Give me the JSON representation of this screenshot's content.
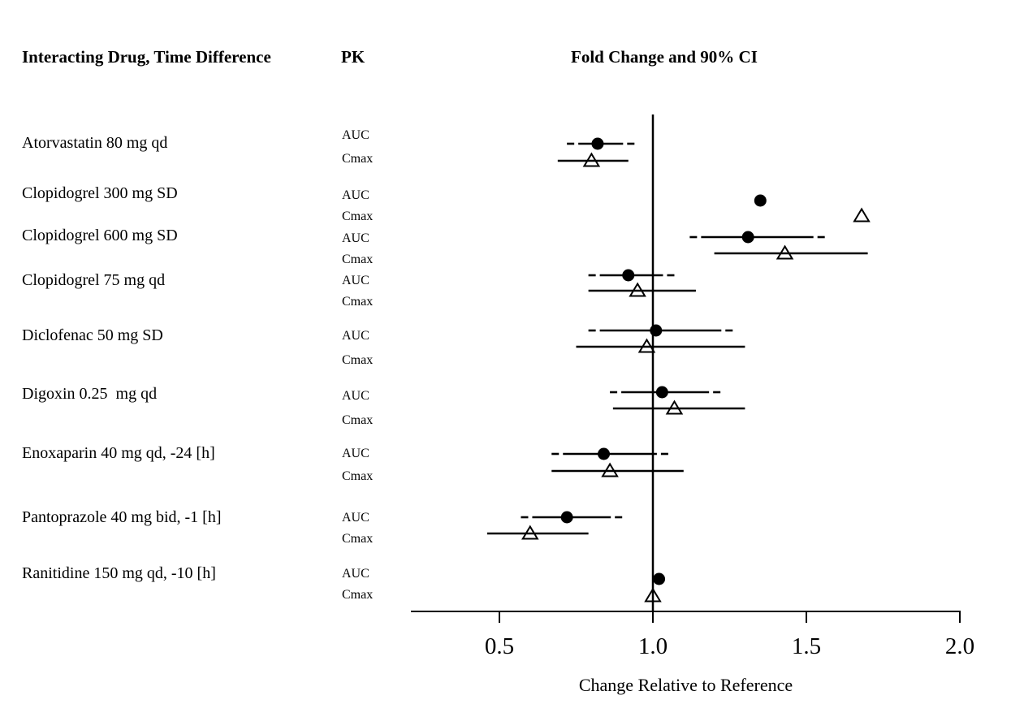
{
  "page": {
    "background": "#ffffff",
    "ink_color": "#000000"
  },
  "headers": {
    "drug_col": "Interacting Drug, Time Difference",
    "pk_col": "PK",
    "plot_col": "Fold Change and 90% CI"
  },
  "chart_data": {
    "type": "forest",
    "title": "Fold Change and 90% CI",
    "xlabel": "Change Relative to Reference",
    "x_tick_values": [
      0.5,
      1.0,
      1.5,
      2.0
    ],
    "x_tick_labels": [
      "0.5",
      "1.0",
      "1.5",
      "2.0"
    ],
    "xlim": [
      0.21,
      2.0
    ],
    "reference_line": 1.0,
    "grid": false,
    "pk_row_labels": [
      "AUC",
      "Cmax"
    ],
    "marker_legend": {
      "auc": "filled black circle with dashed-end 90% CI line",
      "cmax": "open triangle with solid 90% CI line"
    },
    "rows": [
      {
        "drug": "Atorvastatin 80 mg qd",
        "auc": {
          "est": 0.82,
          "lo": 0.72,
          "hi": 0.94
        },
        "cmax": {
          "est": 0.8,
          "lo": 0.69,
          "hi": 0.92
        }
      },
      {
        "drug": "Clopidogrel 300 mg SD",
        "auc": {
          "est": 1.35
        },
        "cmax": {
          "est": 1.68
        }
      },
      {
        "drug": "Clopidogrel 600 mg SD",
        "auc": {
          "est": 1.31,
          "lo": 1.12,
          "hi": 1.56
        },
        "cmax": {
          "est": 1.43,
          "lo": 1.2,
          "hi": 1.7
        }
      },
      {
        "drug": "Clopidogrel 75 mg qd",
        "auc": {
          "est": 0.92,
          "lo": 0.79,
          "hi": 1.07
        },
        "cmax": {
          "est": 0.95,
          "lo": 0.79,
          "hi": 1.14
        }
      },
      {
        "drug": "Diclofenac 50 mg SD",
        "auc": {
          "est": 1.01,
          "lo": 0.79,
          "hi": 1.26
        },
        "cmax": {
          "est": 0.98,
          "lo": 0.75,
          "hi": 1.3
        }
      },
      {
        "drug": "Digoxin 0.25  mg qd",
        "auc": {
          "est": 1.03,
          "lo": 0.86,
          "hi": 1.22
        },
        "cmax": {
          "est": 1.07,
          "lo": 0.87,
          "hi": 1.3
        }
      },
      {
        "drug": "Enoxaparin 40 mg qd, -24 [h]",
        "auc": {
          "est": 0.84,
          "lo": 0.67,
          "hi": 1.05
        },
        "cmax": {
          "est": 0.86,
          "lo": 0.67,
          "hi": 1.1
        }
      },
      {
        "drug": "Pantoprazole 40 mg bid, -1 [h]",
        "auc": {
          "est": 0.72,
          "lo": 0.57,
          "hi": 0.9
        },
        "cmax": {
          "est": 0.6,
          "lo": 0.46,
          "hi": 0.79
        }
      },
      {
        "drug": "Ranitidine 150 mg qd, -10 [h]",
        "auc": {
          "est": 1.02
        },
        "cmax": {
          "est": 1.0
        }
      }
    ]
  }
}
